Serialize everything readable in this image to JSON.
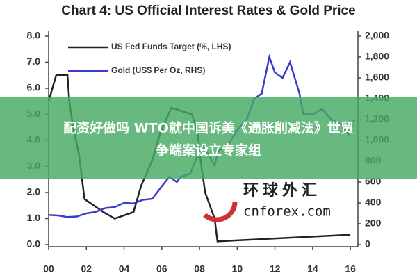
{
  "chart_data": {
    "type": "line",
    "title": "Chart 4: US Official Interest Rates & Gold Price",
    "xlim": [
      2000,
      2016.4
    ],
    "xticks": [
      {
        "value": 2000,
        "label": "00"
      },
      {
        "value": 2002,
        "label": "02"
      },
      {
        "value": 2004,
        "label": "04"
      },
      {
        "value": 2006,
        "label": "06"
      },
      {
        "value": 2008,
        "label": "08"
      },
      {
        "value": 2010,
        "label": "10"
      },
      {
        "value": 2012,
        "label": "12"
      },
      {
        "value": 2014,
        "label": "14"
      },
      {
        "value": 2016,
        "label": "16"
      }
    ],
    "ylim": [
      0,
      8
    ],
    "yticks": [
      {
        "value": 0,
        "label": "0.0"
      },
      {
        "value": 1,
        "label": "1.0"
      },
      {
        "value": 2,
        "label": "2.0"
      },
      {
        "value": 3,
        "label": "3.0"
      },
      {
        "value": 4,
        "label": "4.0"
      },
      {
        "value": 5,
        "label": "5.0"
      },
      {
        "value": 6,
        "label": "6.0"
      },
      {
        "value": 7,
        "label": "7.0"
      },
      {
        "value": 8,
        "label": "8.0"
      }
    ],
    "y2lim": [
      0,
      2000
    ],
    "y2ticks": [
      0,
      200,
      400,
      600,
      800,
      {
        "value": 1000,
        "label": "1,000"
      },
      {
        "value": 1200,
        "label": "1,200"
      },
      {
        "value": 1400,
        "label": "1,400"
      },
      {
        "value": 1600,
        "label": "1,600"
      },
      {
        "value": 1800,
        "label": "1,800"
      },
      {
        "value": 2000,
        "label": "2,000"
      }
    ],
    "legend": "top-left",
    "series": [
      {
        "name": "US Fed Funds Target (%, LHS)",
        "color": "#222222",
        "x": [
          2000,
          2000.2,
          2000.4,
          2001,
          2001.1,
          2001.3,
          2001.6,
          2001.9,
          2002.9,
          2003.5,
          2004.5,
          2004.9,
          2005.5,
          2005.9,
          2006.5,
          2007.6,
          2007.9,
          2008.1,
          2008.3,
          2008.8,
          2008.95,
          2015.9,
          2016.0
        ],
        "values": [
          5.5,
          6.0,
          6.5,
          6.5,
          5.5,
          4.5,
          3.5,
          1.75,
          1.25,
          1.0,
          1.25,
          2.25,
          3.25,
          4.25,
          5.25,
          5.0,
          4.25,
          3.0,
          2.0,
          1.0,
          0.125,
          0.375,
          0.375
        ]
      },
      {
        "name": "Gold (US$ Per Oz, RHS)",
        "color": "#3a3acc",
        "axis": "y2",
        "x": [
          2000,
          2000.5,
          2001,
          2001.5,
          2002,
          2002.5,
          2003,
          2003.5,
          2004,
          2004.5,
          2005,
          2005.5,
          2006,
          2006.4,
          2006.8,
          2007,
          2007.5,
          2008,
          2008.2,
          2008.8,
          2009,
          2009.5,
          2010,
          2010.5,
          2010.9,
          2011.3,
          2011.7,
          2012,
          2012.4,
          2012.8,
          2013.3,
          2013.5,
          2014,
          2014.5,
          2015,
          2015.5,
          2015.9,
          2016.2
        ],
        "values": [
          285,
          280,
          265,
          270,
          300,
          315,
          350,
          360,
          400,
          395,
          430,
          440,
          560,
          650,
          600,
          650,
          680,
          900,
          950,
          760,
          900,
          950,
          1100,
          1200,
          1400,
          1450,
          1800,
          1650,
          1600,
          1750,
          1450,
          1250,
          1250,
          1300,
          1200,
          1150,
          1060,
          1200
        ]
      }
    ]
  },
  "overlay": {
    "banner": [
      "配资好做吗 WTO就中国诉美《通胀削减法》世贸",
      "争端案设立专家组"
    ],
    "watermark": {
      "name": "环球外汇",
      "site": "cnforex.com"
    }
  }
}
